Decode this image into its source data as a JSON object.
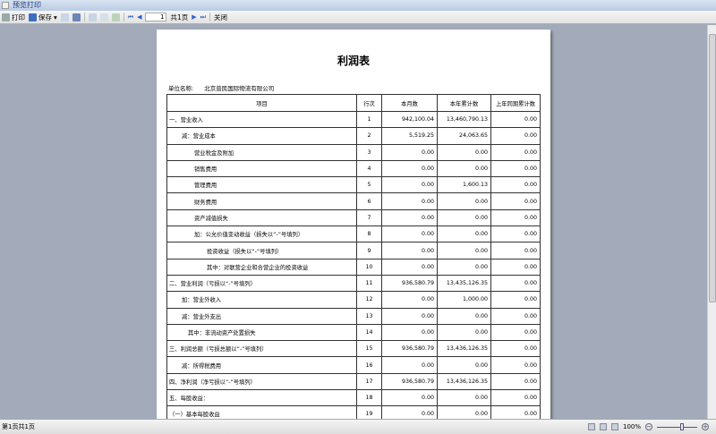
{
  "window": {
    "title": "预览打印"
  },
  "toolbar": {
    "print": "打印",
    "save": "保存",
    "page_value": "1",
    "page_total": "共1页",
    "close": "关闭"
  },
  "report": {
    "title": "利润表",
    "unit_label": "单位名称:",
    "unit_name": "北京普民国际物流有限公司",
    "headers": [
      "项目",
      "行次",
      "本月数",
      "本年累计数",
      "上年同期累计数"
    ],
    "rows": [
      {
        "item": "一、营业收入",
        "indent": 0,
        "no": "1",
        "month": "942,100.04",
        "ytd": "13,460,790.13",
        "prior": "0.00"
      },
      {
        "item": "减：营业成本",
        "indent": 1,
        "no": "2",
        "month": "5,519.25",
        "ytd": "24,063.65",
        "prior": "0.00"
      },
      {
        "item": "营业税金及附加",
        "indent": 2,
        "no": "3",
        "month": "0.00",
        "ytd": "0.00",
        "prior": "0.00"
      },
      {
        "item": "销售费用",
        "indent": 2,
        "no": "4",
        "month": "0.00",
        "ytd": "0.00",
        "prior": "0.00"
      },
      {
        "item": "管理费用",
        "indent": 2,
        "no": "5",
        "month": "0.00",
        "ytd": "1,600.13",
        "prior": "0.00"
      },
      {
        "item": "财务费用",
        "indent": 2,
        "no": "6",
        "month": "0.00",
        "ytd": "0.00",
        "prior": "0.00"
      },
      {
        "item": "资产减值损失",
        "indent": 2,
        "no": "7",
        "month": "0.00",
        "ytd": "0.00",
        "prior": "0.00"
      },
      {
        "item": "加：公允价值变动收益（损失以“-”号填列）",
        "indent": 2,
        "no": "8",
        "month": "0.00",
        "ytd": "0.00",
        "prior": "0.00"
      },
      {
        "item": "投资收益（损失以“-”号填列）",
        "indent": 3,
        "no": "9",
        "month": "0.00",
        "ytd": "0.00",
        "prior": "0.00"
      },
      {
        "item": "其中：对联营企业和合营企业的投资收益",
        "indent": 3,
        "no": "10",
        "month": "0.00",
        "ytd": "0.00",
        "prior": "0.00"
      },
      {
        "item": "二、营业利润（亏损以“-”号填列）",
        "indent": 0,
        "no": "11",
        "month": "936,580.79",
        "ytd": "13,435,126.35",
        "prior": "0.00"
      },
      {
        "item": "加：营业外收入",
        "indent": 1,
        "no": "12",
        "month": "0.00",
        "ytd": "1,000.00",
        "prior": "0.00"
      },
      {
        "item": "减：营业外支出",
        "indent": 1,
        "no": "13",
        "month": "0.00",
        "ytd": "0.00",
        "prior": "0.00"
      },
      {
        "item": "其中：非流动资产处置损失",
        "indent": 1.5,
        "no": "14",
        "month": "0.00",
        "ytd": "0.00",
        "prior": "0.00"
      },
      {
        "item": "三、利润总额（亏损总额以“-”号填列）",
        "indent": 0,
        "no": "15",
        "month": "936,580.79",
        "ytd": "13,436,126.35",
        "prior": "0.00"
      },
      {
        "item": "减：所得税费用",
        "indent": 1,
        "no": "16",
        "month": "0.00",
        "ytd": "0.00",
        "prior": "0.00"
      },
      {
        "item": "四、净利润（净亏损以“-”号填列）",
        "indent": 0,
        "no": "17",
        "month": "936,580.79",
        "ytd": "13,436,126.35",
        "prior": "0.00"
      },
      {
        "item": "五、每股收益：",
        "indent": 0,
        "no": "18",
        "month": "0.00",
        "ytd": "0.00",
        "prior": "0.00"
      },
      {
        "item": "（一）基本每股收益",
        "indent": 0,
        "no": "19",
        "month": "0.00",
        "ytd": "0.00",
        "prior": "0.00"
      }
    ]
  },
  "status": {
    "page_info": "第1页共1页",
    "zoom": "100%"
  }
}
